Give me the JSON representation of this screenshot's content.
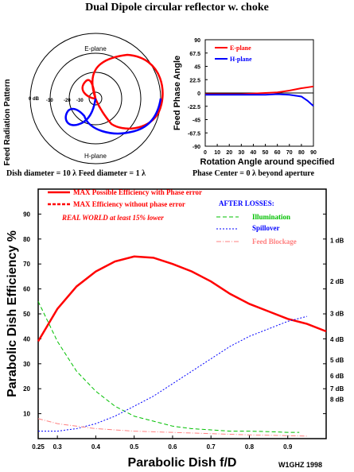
{
  "title": "Dual Dipole circular reflector w. choke",
  "polar": {
    "ylabel": "Feed Radiation Pattern",
    "top_label": "E-plane",
    "bottom_label": "H-plane",
    "ring_labels": [
      "0 dB",
      "-10",
      "-20",
      "-30"
    ]
  },
  "dish_info": "Dish diameter = 10 λ    Feed diameter = 1 λ",
  "phase_center": "Phase Center = 0 λ beyond aperture",
  "chart_data": [
    {
      "type": "line",
      "title": "",
      "ylabel": "Feed Phase Angle",
      "xlabel": "Rotation Angle around specified",
      "x_ticks": [
        0,
        10,
        20,
        30,
        40,
        50,
        60,
        70,
        80,
        90
      ],
      "y_ticks": [
        "90",
        "67.5",
        "45",
        "22.5",
        "0",
        "-22.5",
        "-45",
        "-67.5",
        "-90"
      ],
      "xlim": [
        0,
        90
      ],
      "ylim": [
        -90,
        90
      ],
      "series": [
        {
          "name": "E-plane",
          "color": "#ff0000",
          "x": [
            0,
            10,
            20,
            30,
            40,
            50,
            60,
            70,
            80,
            90
          ],
          "y": [
            -2,
            -2,
            -2,
            -2,
            -1,
            0,
            1,
            4,
            8,
            11
          ]
        },
        {
          "name": "H-plane",
          "color": "#0000ff",
          "x": [
            0,
            10,
            20,
            30,
            40,
            50,
            60,
            70,
            80,
            85,
            90
          ],
          "y": [
            -3,
            -3,
            -3,
            -3,
            -3,
            -3,
            -2,
            -3,
            -6,
            -13,
            -22
          ]
        }
      ]
    },
    {
      "type": "line",
      "title": "",
      "xlabel": "Parabolic Dish f/D",
      "ylabel": "Parabolic Dish Efficiency %",
      "xlim": [
        0.25,
        1.0
      ],
      "ylim": [
        0,
        100
      ],
      "x_tick_labels": [
        "0.25",
        "0.3",
        "0.4",
        "0.5",
        "0.6",
        "0.7",
        "0.8",
        "0.9"
      ],
      "x_ticks": [
        0.25,
        0.3,
        0.4,
        0.5,
        0.6,
        0.7,
        0.8,
        0.9
      ],
      "y_ticks": [
        10,
        20,
        30,
        40,
        50,
        60,
        70,
        80,
        90
      ],
      "db_labels": [
        "1 dB",
        "2 dB",
        "3 dB",
        "4 dB",
        "5 dB",
        "6 dB",
        "7 dB",
        "8 dB"
      ],
      "db_values": [
        79.4,
        63.1,
        50.1,
        39.8,
        31.6,
        25.1,
        20.0,
        15.8
      ],
      "legend": {
        "max_with_phase": "MAX Possible Efficiency with Phase error",
        "max_without_phase": "MAX Efficiency without phase error",
        "real_world": "REAL WORLD at least 15% lower",
        "after_losses": "AFTER LOSSES:",
        "illumination": "Illumination",
        "spillover": "Spillover",
        "feed_blockage": "Feed Blockage"
      },
      "series": [
        {
          "name": "MAX Possible Efficiency with Phase error",
          "color": "#ff0000",
          "x": [
            0.25,
            0.3,
            0.35,
            0.4,
            0.45,
            0.5,
            0.55,
            0.6,
            0.65,
            0.7,
            0.75,
            0.8,
            0.85,
            0.9,
            0.95,
            1.0
          ],
          "y": [
            39,
            52,
            61,
            67,
            71,
            73,
            72.5,
            70,
            67,
            63,
            58,
            54,
            51,
            48,
            46,
            43
          ]
        },
        {
          "name": "Illumination",
          "color": "#00c000",
          "x": [
            0.25,
            0.3,
            0.35,
            0.4,
            0.45,
            0.5,
            0.55,
            0.6,
            0.65,
            0.7,
            0.75,
            0.8,
            0.85,
            0.9,
            0.93
          ],
          "y": [
            55,
            39,
            27,
            19,
            13,
            9,
            7,
            5,
            4,
            3.5,
            3,
            3,
            2.8,
            2.5,
            2.5
          ]
        },
        {
          "name": "Spillover",
          "color": "#0000ff",
          "x": [
            0.25,
            0.3,
            0.35,
            0.4,
            0.45,
            0.5,
            0.55,
            0.6,
            0.65,
            0.7,
            0.75,
            0.8,
            0.85,
            0.9,
            0.95
          ],
          "y": [
            3,
            3,
            4,
            6,
            9,
            13,
            17,
            22,
            27,
            32,
            37,
            41,
            44,
            47,
            49
          ]
        },
        {
          "name": "Feed Blockage",
          "color": "#ff8080",
          "x": [
            0.25,
            0.3,
            0.4,
            0.5,
            0.6,
            0.7,
            0.8,
            0.9,
            0.95
          ],
          "y": [
            8,
            6,
            4,
            3,
            2.5,
            2,
            1.5,
            1.2,
            1
          ]
        }
      ]
    }
  ],
  "credit": "W1GHZ 1998"
}
